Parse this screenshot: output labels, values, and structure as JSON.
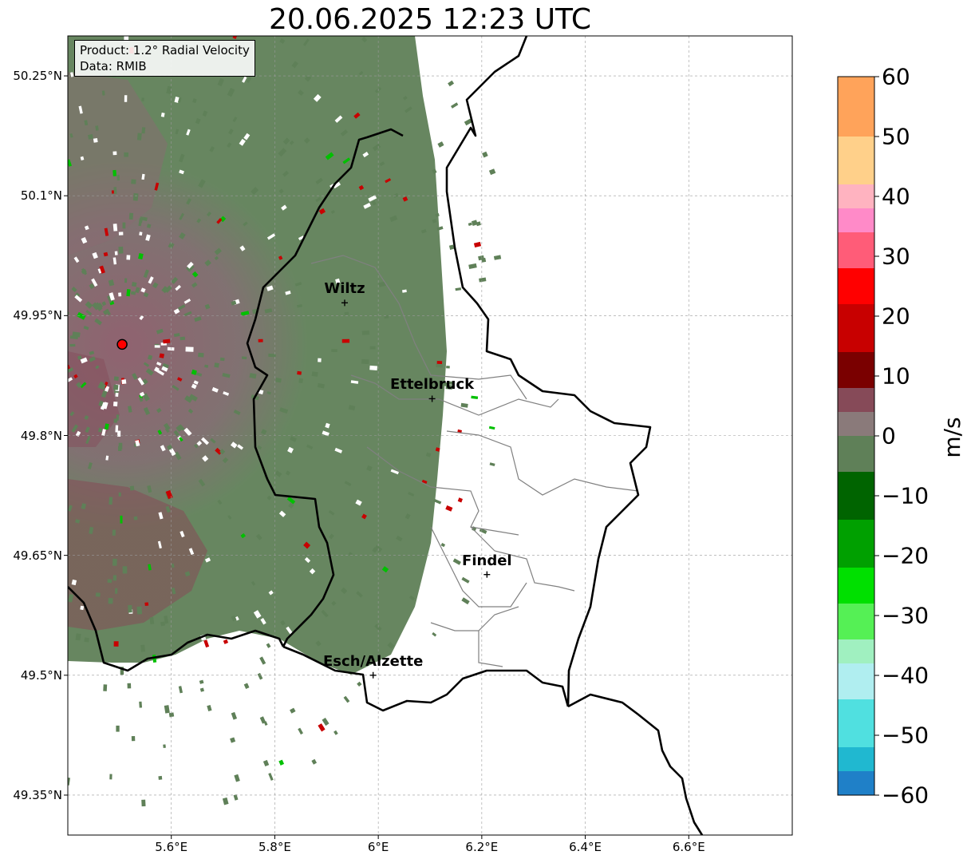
{
  "title": "20.06.2025 12:23 UTC",
  "info_box": {
    "product": "Product: 1.2° Radial Velocity",
    "data_source": "Data: RMIB"
  },
  "map": {
    "lon_range": [
      5.4,
      6.8
    ],
    "lat_range": [
      49.3,
      50.3
    ],
    "lat_ticks": [
      {
        "value": 50.25,
        "label": "50.25°N"
      },
      {
        "value": 50.1,
        "label": "50.1°N"
      },
      {
        "value": 49.95,
        "label": "49.95°N"
      },
      {
        "value": 49.8,
        "label": "49.8°N"
      },
      {
        "value": 49.65,
        "label": "49.65°N"
      },
      {
        "value": 49.5,
        "label": "49.5°N"
      },
      {
        "value": 49.35,
        "label": "49.35°N"
      }
    ],
    "lon_ticks": [
      {
        "value": 5.6,
        "label": "5.6°E"
      },
      {
        "value": 5.8,
        "label": "5.8°E"
      },
      {
        "value": 6.0,
        "label": "6°E"
      },
      {
        "value": 6.2,
        "label": "6.2°E"
      },
      {
        "value": 6.4,
        "label": "6.4°E"
      },
      {
        "value": 6.6,
        "label": "6.6°E"
      }
    ],
    "radar_site": {
      "lon": 5.505,
      "lat": 49.914
    },
    "cities": [
      {
        "name": "Wiltz",
        "lon": 5.935,
        "lat": 49.966
      },
      {
        "name": "Ettelbruck",
        "lon": 6.104,
        "lat": 49.846
      },
      {
        "name": "Findel",
        "lon": 6.21,
        "lat": 49.626
      },
      {
        "name": "Esch/Alzette",
        "lon": 5.99,
        "lat": 49.5
      }
    ]
  },
  "colorbar": {
    "unit": "m/s",
    "min": -60,
    "max": 60,
    "ticks": [
      {
        "value": 60,
        "label": "60"
      },
      {
        "value": 50,
        "label": "50"
      },
      {
        "value": 40,
        "label": "40"
      },
      {
        "value": 30,
        "label": "30"
      },
      {
        "value": 20,
        "label": "20"
      },
      {
        "value": 10,
        "label": "10"
      },
      {
        "value": 0,
        "label": "0"
      },
      {
        "value": -10,
        "label": "−10"
      },
      {
        "value": -20,
        "label": "−20"
      },
      {
        "value": -30,
        "label": "−30"
      },
      {
        "value": -40,
        "label": "−40"
      },
      {
        "value": -50,
        "label": "−50"
      },
      {
        "value": -60,
        "label": "−60"
      }
    ],
    "bands": [
      {
        "from": 50,
        "to": 60,
        "color": "#ffa35a"
      },
      {
        "from": 42,
        "to": 50,
        "color": "#ffd08a"
      },
      {
        "from": 38,
        "to": 42,
        "color": "#ffb3c0"
      },
      {
        "from": 34,
        "to": 38,
        "color": "#ff8ac8"
      },
      {
        "from": 28,
        "to": 34,
        "color": "#ff5c78"
      },
      {
        "from": 22,
        "to": 28,
        "color": "#ff0000"
      },
      {
        "from": 14,
        "to": 22,
        "color": "#c80000"
      },
      {
        "from": 8,
        "to": 14,
        "color": "#7a0000"
      },
      {
        "from": 4,
        "to": 8,
        "color": "#864a58"
      },
      {
        "from": 0,
        "to": 4,
        "color": "#8a7a7a"
      },
      {
        "from": -6,
        "to": 0,
        "color": "#5f8058"
      },
      {
        "from": -14,
        "to": -6,
        "color": "#006400"
      },
      {
        "from": -22,
        "to": -14,
        "color": "#00a000"
      },
      {
        "from": -28,
        "to": -22,
        "color": "#00e000"
      },
      {
        "from": -34,
        "to": -28,
        "color": "#55f055"
      },
      {
        "from": -38,
        "to": -34,
        "color": "#a0f0c0"
      },
      {
        "from": -44,
        "to": -38,
        "color": "#b0eef0"
      },
      {
        "from": -52,
        "to": -44,
        "color": "#50e0e0"
      },
      {
        "from": -56,
        "to": -52,
        "color": "#20b8d0"
      },
      {
        "from": -60,
        "to": -56,
        "color": "#1f80c8"
      }
    ]
  },
  "colors": {
    "dominant_inbound": "#5f8058",
    "dominant_outbound": "#8a5a68",
    "border": "#000000",
    "canton_lines": "#808080",
    "radar_marker": "#ff0000"
  }
}
